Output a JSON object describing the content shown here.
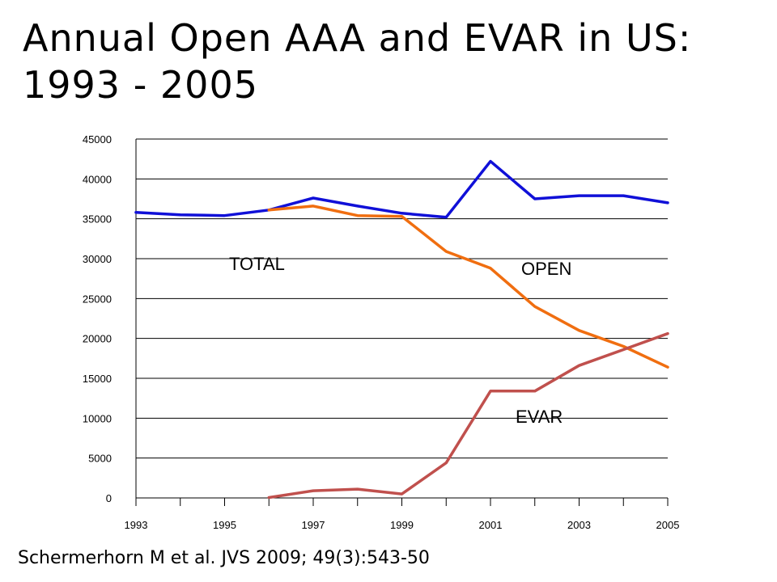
{
  "slide": {
    "title_line1": "Annual Open AAA and EVAR in US:",
    "title_line2": "1993 - 2005",
    "citation": "Schermerhorn M et al. JVS 2009; 49(3):543-50"
  },
  "chart_data": {
    "type": "line",
    "title": "",
    "xlabel": "",
    "ylabel": "",
    "x": [
      1993,
      1994,
      1995,
      1996,
      1997,
      1998,
      1999,
      2000,
      2001,
      2002,
      2003,
      2004,
      2005
    ],
    "x_tick_labels": [
      "1993",
      "1995",
      "1997",
      "1999",
      "2001",
      "2003",
      "2005"
    ],
    "y_tick_labels": [
      "0",
      "5000",
      "10000",
      "15000",
      "20000",
      "25000",
      "30000",
      "35000",
      "40000",
      "45000"
    ],
    "ylim": [
      0,
      45000
    ],
    "grid": "horizontal",
    "series": [
      {
        "name": "TOTAL",
        "color": "#1010d8",
        "values": [
          35800,
          35500,
          35400,
          36100,
          37600,
          36600,
          35700,
          35200,
          42200,
          37500,
          37900,
          37900,
          37000
        ]
      },
      {
        "name": "OPEN",
        "color": "#f06e10",
        "values": [
          null,
          null,
          null,
          36100,
          36600,
          35400,
          35300,
          30900,
          28800,
          24000,
          21000,
          19000,
          16400
        ]
      },
      {
        "name": "EVAR",
        "color": "#c0504d",
        "values": [
          null,
          null,
          null,
          50,
          900,
          1100,
          500,
          4400,
          13400,
          13400,
          16600,
          18600,
          20600
        ]
      }
    ]
  }
}
